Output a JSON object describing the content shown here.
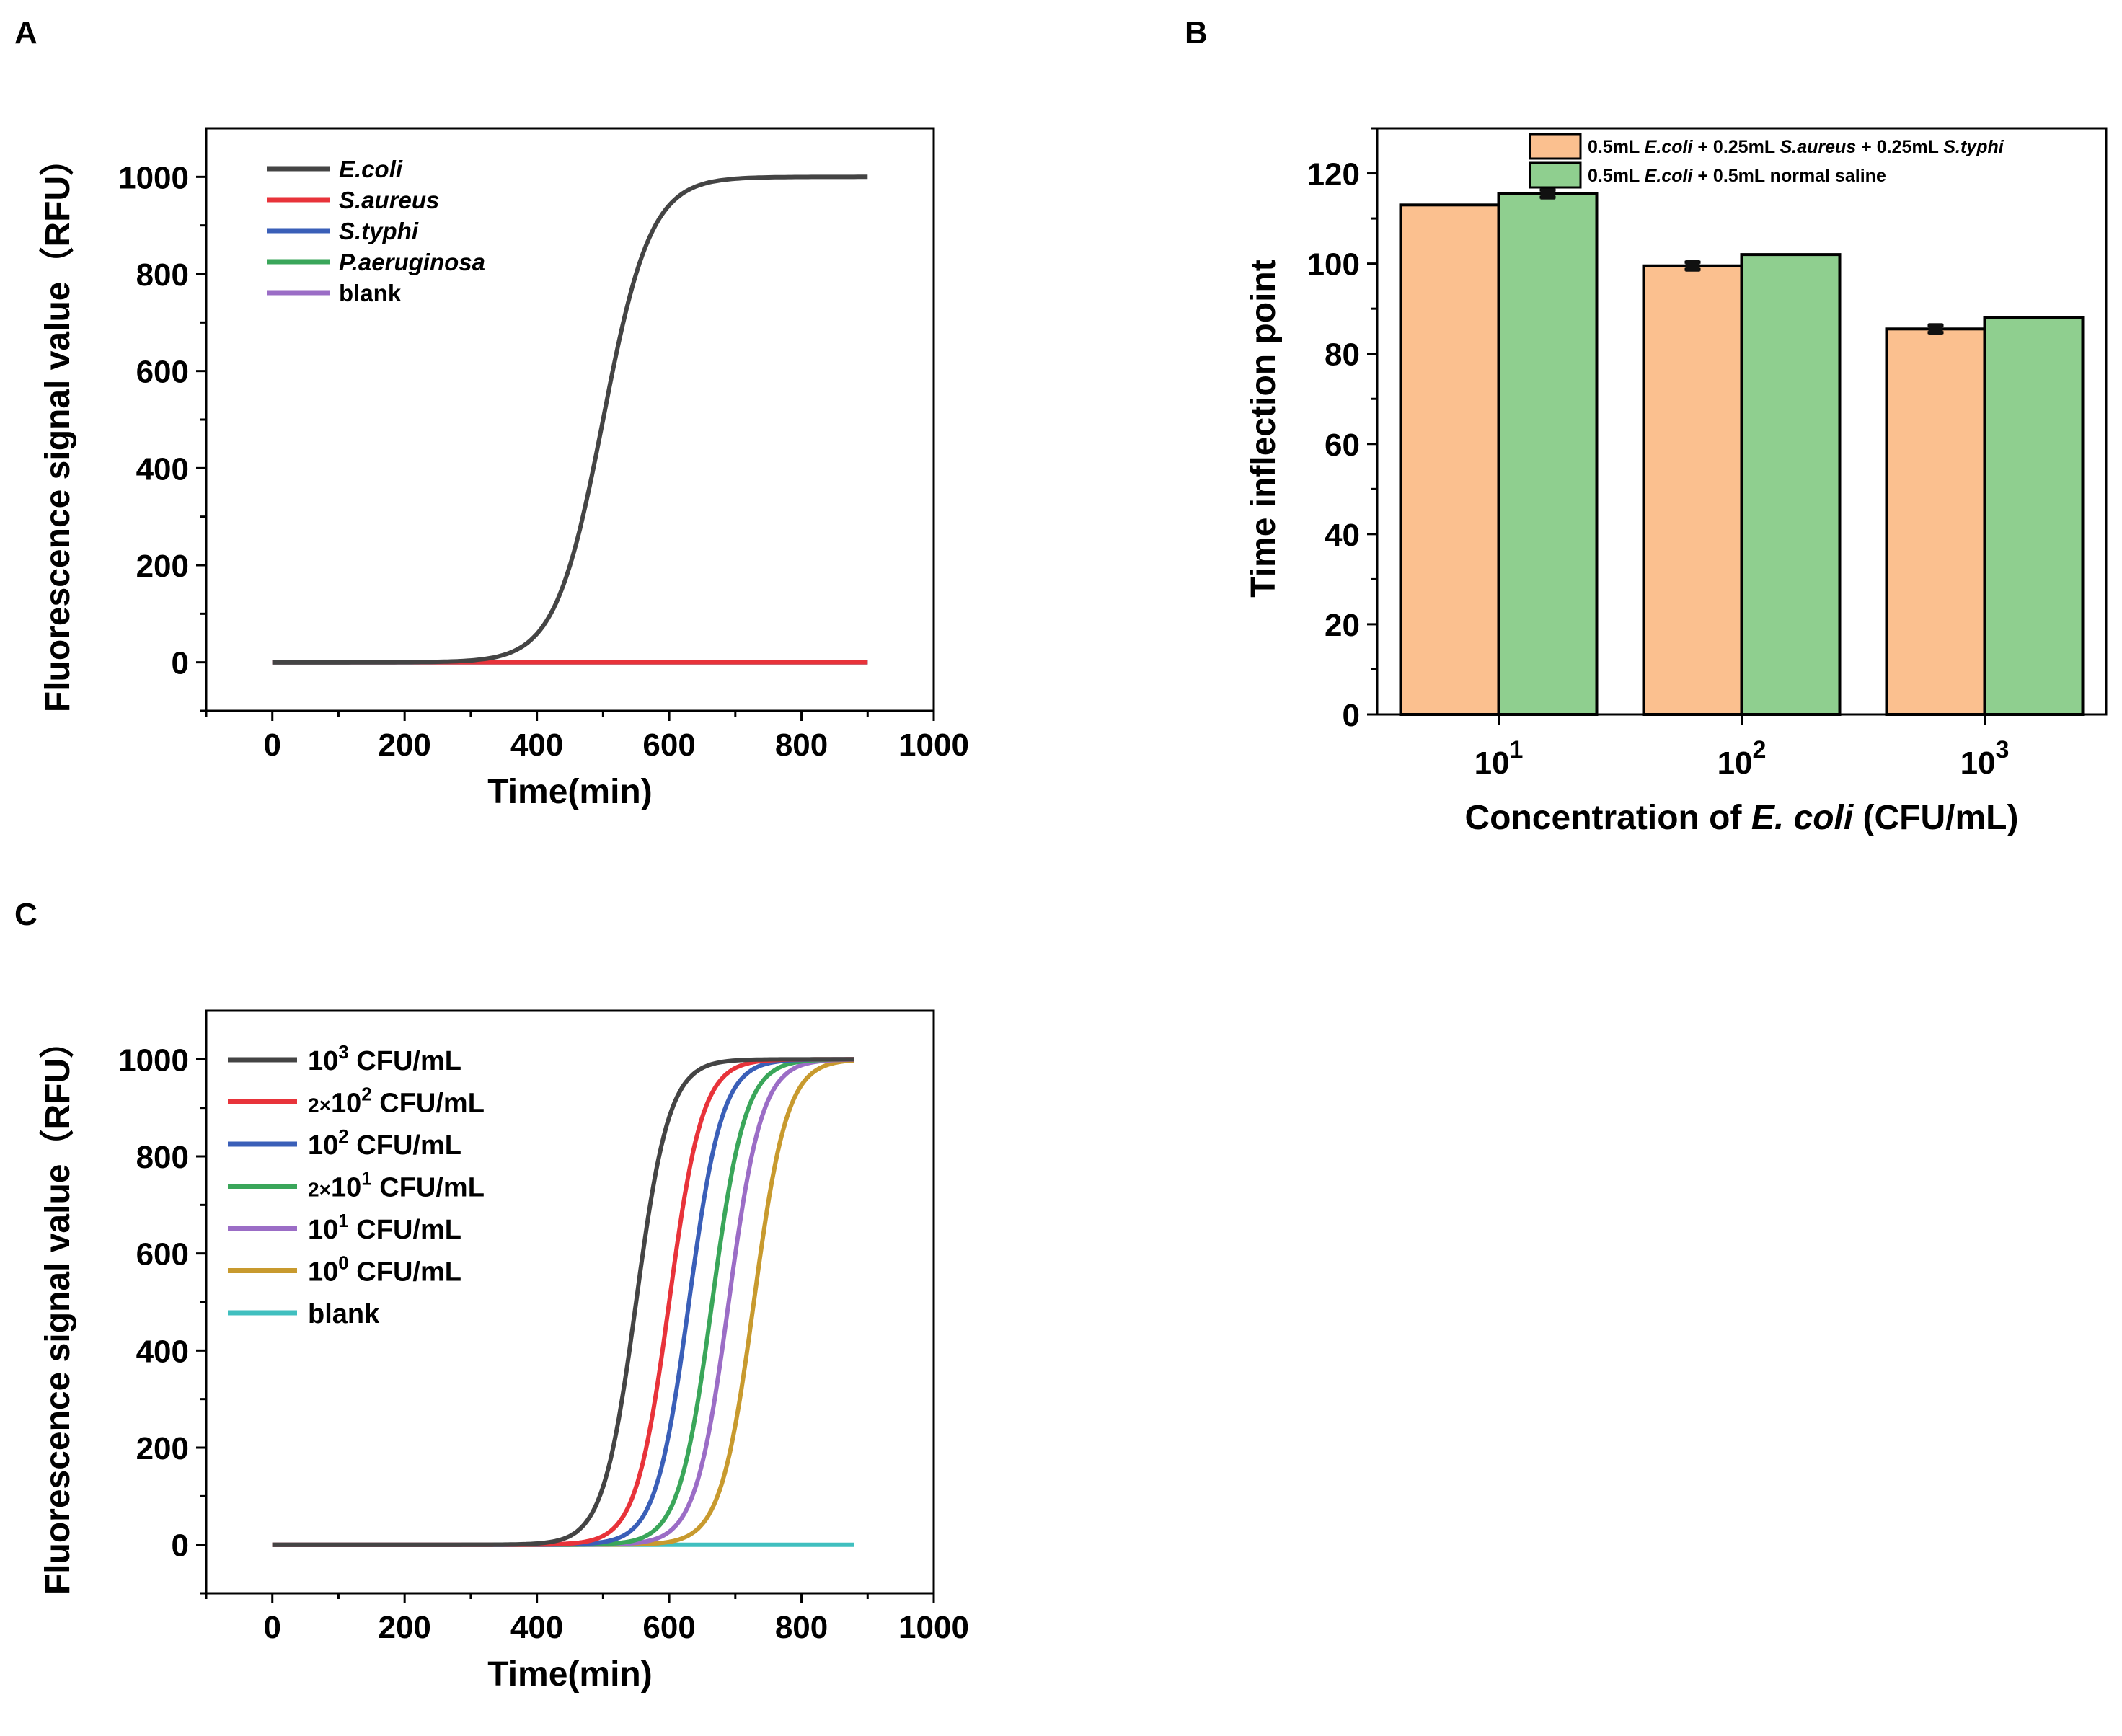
{
  "chart_data": [
    {
      "panel": "A",
      "type": "line",
      "title": "",
      "xlabel": "Time(min)",
      "ylabel": "Fluorescence signal value（RFU）",
      "xlim": [
        -100,
        1000
      ],
      "ylim": [
        -100,
        1100
      ],
      "xticks": [
        0,
        200,
        400,
        600,
        800,
        1000
      ],
      "yticks": [
        0,
        200,
        400,
        600,
        800,
        1000
      ],
      "legend_position": "top-left",
      "series": [
        {
          "name": "E.coli",
          "color": "#444444",
          "italic": true,
          "x": [
            0,
            300,
            350,
            400,
            450,
            500,
            550,
            600,
            650,
            700,
            750,
            800,
            900
          ],
          "y": [
            0,
            3,
            10,
            55,
            230,
            500,
            770,
            945,
            990,
            998,
            1000,
            1000,
            1000
          ]
        },
        {
          "name": "S.aureus",
          "color": "#e8333a",
          "italic": true,
          "x": [
            0,
            900
          ],
          "y": [
            0,
            0
          ]
        },
        {
          "name": "S.typhi",
          "color": "#3a5fb8",
          "italic": true,
          "x": [
            0,
            900
          ],
          "y": [
            0,
            0
          ]
        },
        {
          "name": "P.aeruginosa",
          "color": "#3aa65a",
          "italic": true,
          "x": [
            0,
            900
          ],
          "y": [
            0,
            0
          ]
        },
        {
          "name": "blank",
          "color": "#9b6dc6",
          "italic": false,
          "x": [
            0,
            900
          ],
          "y": [
            0,
            0
          ]
        }
      ]
    },
    {
      "panel": "B",
      "type": "bar",
      "title": "",
      "xlabel_prefix": "Concentration of ",
      "xlabel_italic": "E. coli",
      "xlabel_suffix": " (CFU/mL)",
      "ylabel": "Time inflection point",
      "ylim": [
        0,
        130
      ],
      "yticks": [
        0,
        20,
        40,
        60,
        80,
        100,
        120
      ],
      "categories": [
        {
          "base": "10",
          "exp": "1"
        },
        {
          "base": "10",
          "exp": "2"
        },
        {
          "base": "10",
          "exp": "3"
        }
      ],
      "legend_position": "top-right",
      "series": [
        {
          "name": "0.5mL E.coli + 0.25mL S.aureus + 0.25mL S.typhi",
          "legend_parts": [
            {
              "t": "0.5mL ",
              "i": false
            },
            {
              "t": "E.coli",
              "i": true
            },
            {
              "t": " + 0.25mL ",
              "i": false
            },
            {
              "t": "S.aureus",
              "i": true
            },
            {
              "t": " + 0.25mL ",
              "i": false
            },
            {
              "t": "S.typhi",
              "i": true
            }
          ],
          "color": "#fbc08f",
          "values": [
            113,
            99.5,
            85.5
          ],
          "errors": [
            0,
            0.8,
            0.8
          ]
        },
        {
          "name": "0.5mL E.coli + 0.5mL normal saline",
          "legend_parts": [
            {
              "t": "0.5mL ",
              "i": false
            },
            {
              "t": "E.coli",
              "i": true
            },
            {
              "t": " + 0.5mL normal saline",
              "i": false
            }
          ],
          "color": "#8fcf8f",
          "values": [
            115.5,
            102,
            88
          ],
          "errors": [
            0.8,
            0,
            0
          ]
        }
      ]
    },
    {
      "panel": "C",
      "type": "line",
      "title": "",
      "xlabel": "Time(min)",
      "ylabel": "Fluorescence signal value（RFU）",
      "xlim": [
        -100,
        1000
      ],
      "ylim": [
        -100,
        1100
      ],
      "xticks": [
        0,
        200,
        400,
        600,
        800,
        1000
      ],
      "yticks": [
        0,
        200,
        400,
        600,
        800,
        1000
      ],
      "legend_position": "top-left",
      "series": [
        {
          "name": "10³ CFU/mL",
          "pre": "",
          "base": "10",
          "exp": "3",
          "unit": " CFU/mL",
          "color": "#444444",
          "midpoint": 550,
          "plateau_end": 880
        },
        {
          "name": "2×10² CFU/mL",
          "pre": "2×",
          "base": "10",
          "exp": "2",
          "unit": " CFU/mL",
          "color": "#e8333a",
          "midpoint": 600,
          "plateau_end": 880
        },
        {
          "name": "10² CFU/mL",
          "pre": "",
          "base": "10",
          "exp": "2",
          "unit": " CFU/mL",
          "color": "#3a5fb8",
          "midpoint": 630,
          "plateau_end": 880
        },
        {
          "name": "2×10¹ CFU/mL",
          "pre": "2×",
          "base": "10",
          "exp": "1",
          "unit": " CFU/mL",
          "color": "#3aa65a",
          "midpoint": 665,
          "plateau_end": 880
        },
        {
          "name": "10¹ CFU/mL",
          "pre": "",
          "base": "10",
          "exp": "1",
          "unit": " CFU/mL",
          "color": "#9b6dc6",
          "midpoint": 690,
          "plateau_end": 880
        },
        {
          "name": "10⁰ CFU/mL",
          "pre": "",
          "base": "10",
          "exp": "0",
          "unit": " CFU/mL",
          "color": "#c89a2e",
          "midpoint": 728,
          "plateau_end": 880
        },
        {
          "name": "blank",
          "pre": "",
          "base": "",
          "exp": "",
          "unit": "blank",
          "color": "#40bfbf",
          "midpoint": null,
          "plateau_end": 880
        }
      ]
    }
  ]
}
